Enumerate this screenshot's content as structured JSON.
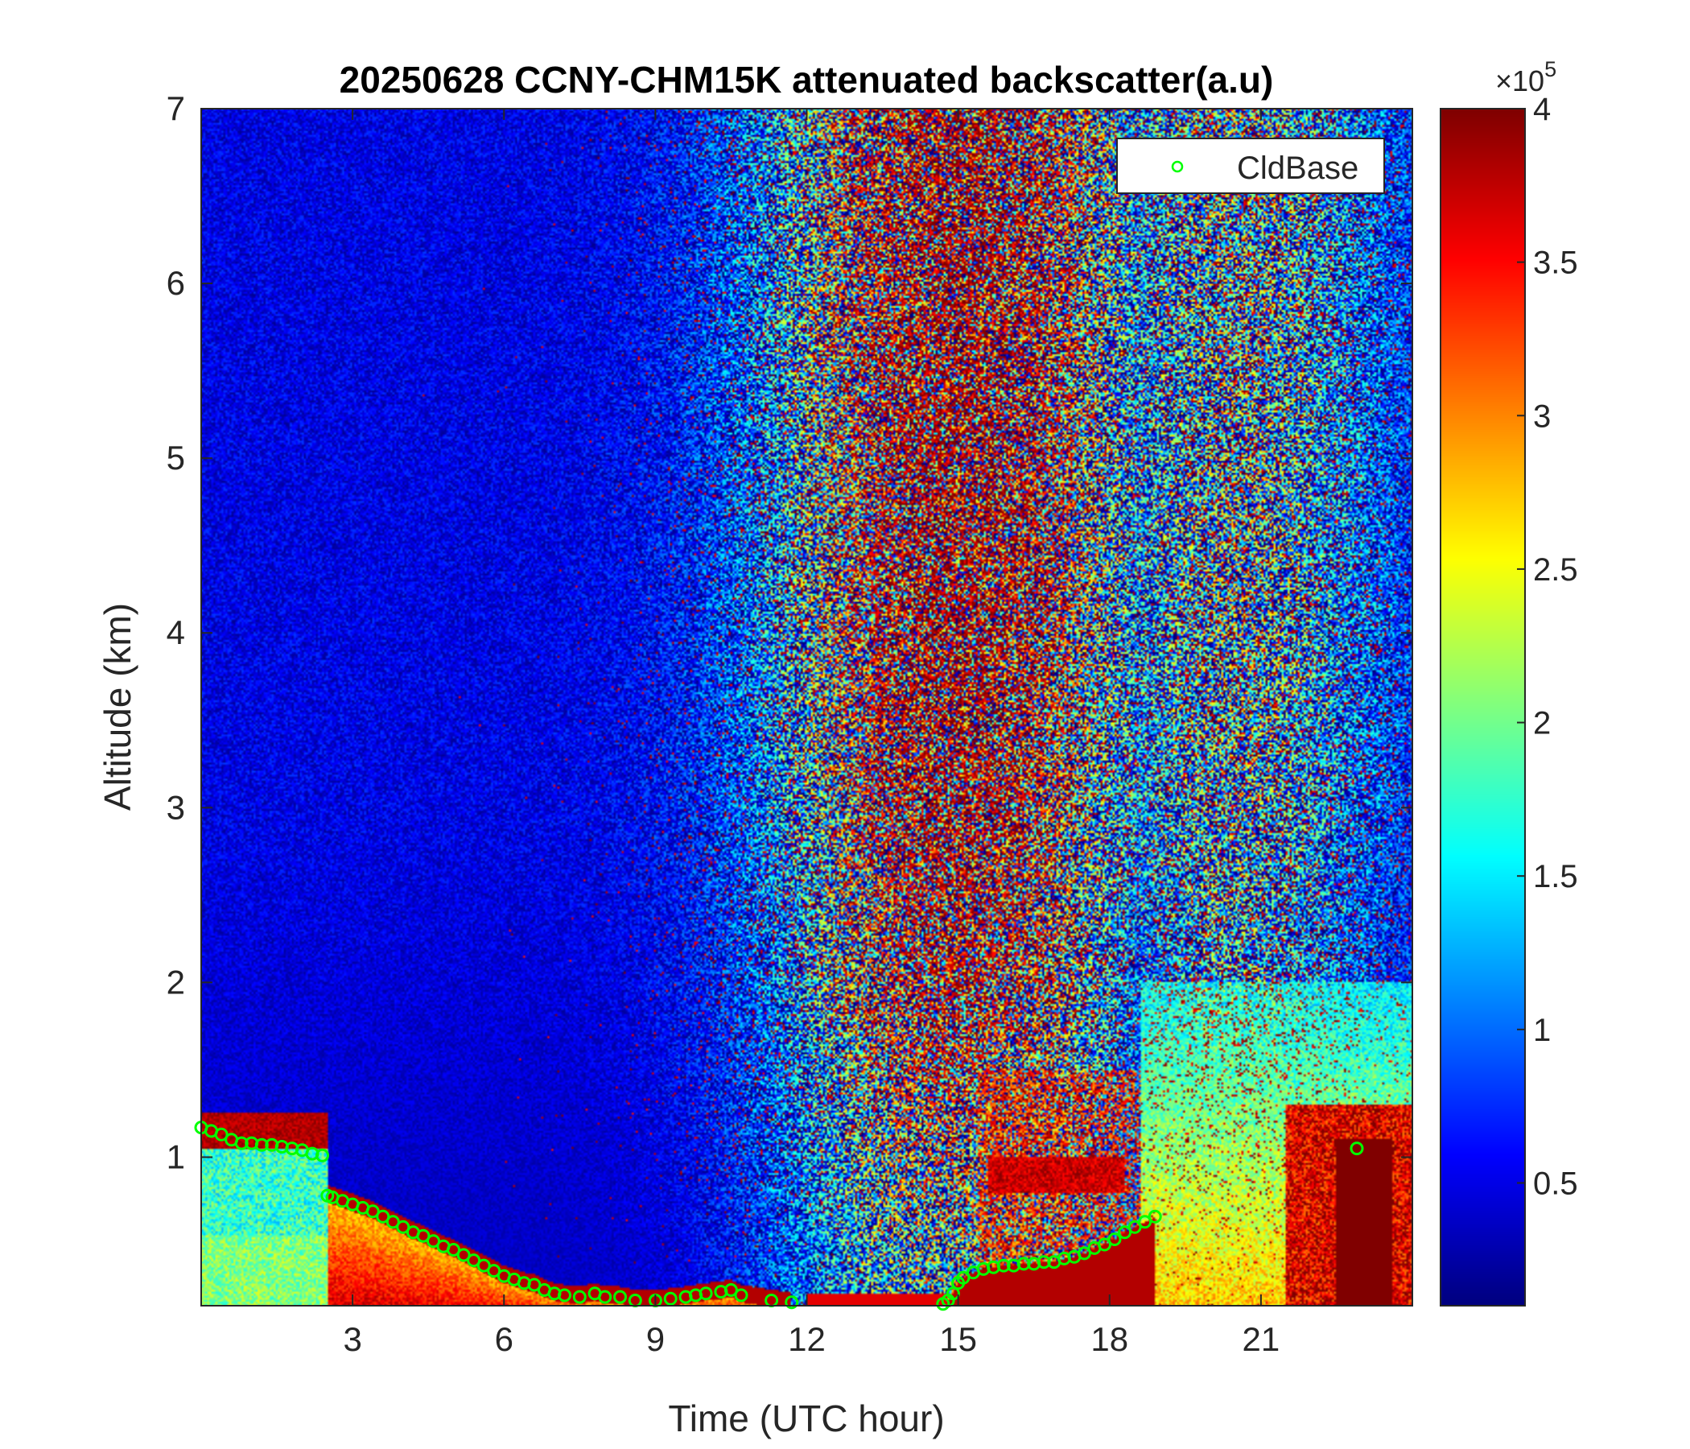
{
  "chart_data": {
    "type": "heatmap",
    "title": "20250628 CCNY-CHM15K attenuated backscatter(a.u)",
    "xlabel": "Time (UTC hour)",
    "ylabel": "Altitude (km)",
    "xlim": [
      0,
      24
    ],
    "ylim": [
      0.15,
      7
    ],
    "xticks": [
      "3",
      "6",
      "9",
      "12",
      "15",
      "18",
      "21"
    ],
    "yticks": [
      "1",
      "2",
      "3",
      "4",
      "5",
      "6",
      "7"
    ],
    "colorbar": {
      "multiplier_base": "×10",
      "multiplier_exp": "5",
      "range": [
        0.1,
        4
      ],
      "ticks": [
        "0.5",
        "1",
        "1.5",
        "2",
        "2.5",
        "3",
        "3.5",
        "4"
      ],
      "colormap": "jet"
    },
    "legend": {
      "position": "top-right",
      "entries": [
        "CldBase"
      ],
      "marker_color": "#00ff00"
    },
    "series": [
      {
        "name": "CldBase",
        "marker": "circle",
        "color": "#00ff00",
        "x": [
          0.0,
          0.2,
          0.4,
          0.6,
          0.8,
          1.0,
          1.2,
          1.4,
          1.6,
          1.8,
          2.0,
          2.2,
          2.4,
          2.5,
          2.6,
          2.8,
          3.0,
          3.2,
          3.4,
          3.6,
          3.8,
          4.0,
          4.2,
          4.4,
          4.6,
          4.8,
          5.0,
          5.2,
          5.4,
          5.6,
          5.8,
          6.0,
          6.2,
          6.4,
          6.6,
          6.8,
          7.0,
          7.2,
          7.5,
          7.8,
          8.0,
          8.3,
          8.6,
          9.0,
          9.3,
          9.6,
          9.8,
          10.0,
          10.3,
          10.5,
          10.7,
          11.3,
          11.7,
          14.7,
          14.8,
          14.9,
          15.0,
          15.1,
          15.3,
          15.5,
          15.7,
          15.9,
          16.1,
          16.3,
          16.5,
          16.7,
          16.9,
          17.1,
          17.3,
          17.5,
          17.7,
          17.9,
          18.1,
          18.3,
          18.5,
          18.7,
          18.9,
          22.9
        ],
        "y": [
          1.17,
          1.15,
          1.13,
          1.1,
          1.08,
          1.08,
          1.07,
          1.07,
          1.06,
          1.05,
          1.04,
          1.02,
          1.01,
          0.78,
          0.77,
          0.75,
          0.73,
          0.71,
          0.69,
          0.66,
          0.63,
          0.6,
          0.57,
          0.55,
          0.52,
          0.49,
          0.47,
          0.44,
          0.41,
          0.38,
          0.35,
          0.32,
          0.3,
          0.28,
          0.27,
          0.24,
          0.22,
          0.21,
          0.2,
          0.22,
          0.2,
          0.2,
          0.18,
          0.18,
          0.19,
          0.2,
          0.21,
          0.22,
          0.23,
          0.24,
          0.21,
          0.18,
          0.17,
          0.16,
          0.18,
          0.22,
          0.28,
          0.31,
          0.34,
          0.36,
          0.37,
          0.38,
          0.38,
          0.39,
          0.39,
          0.4,
          0.4,
          0.42,
          0.43,
          0.45,
          0.48,
          0.5,
          0.53,
          0.57,
          0.6,
          0.63,
          0.66,
          1.05
        ]
      }
    ]
  }
}
